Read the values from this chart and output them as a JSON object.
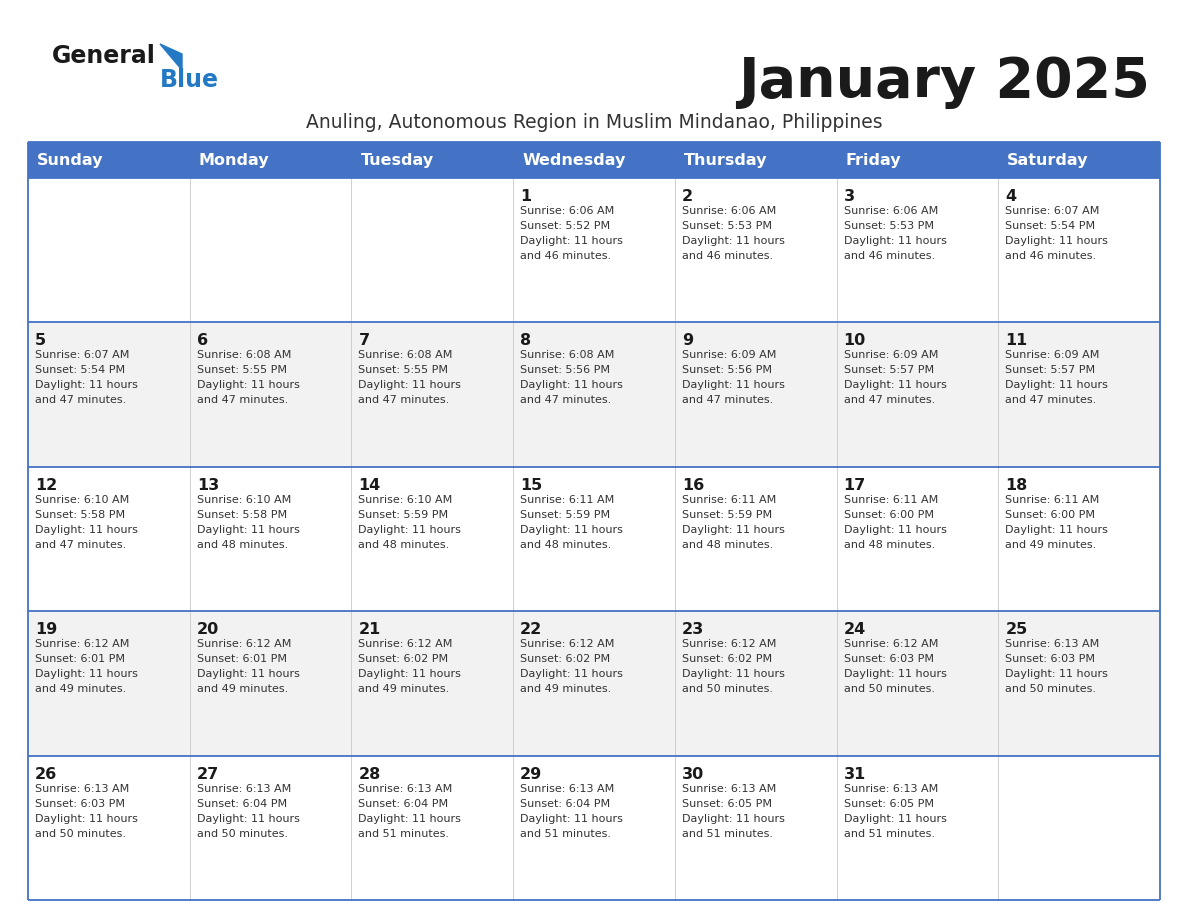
{
  "title": "January 2025",
  "subtitle": "Anuling, Autonomous Region in Muslim Mindanao, Philippines",
  "header_bg_color": "#4472C4",
  "header_text_color": "#FFFFFF",
  "row_bg_color_odd": "#FFFFFF",
  "row_bg_color_even": "#F2F2F2",
  "cell_border_color": "#4472C4",
  "day_headers": [
    "Sunday",
    "Monday",
    "Tuesday",
    "Wednesday",
    "Thursday",
    "Friday",
    "Saturday"
  ],
  "title_color": "#1a1a1a",
  "subtitle_color": "#333333",
  "day_num_color": "#1a1a1a",
  "cell_text_color": "#333333",
  "logo_general_color": "#1a1a1a",
  "logo_blue_color": "#2479C4",
  "logo_triangle_color": "#2479C4",
  "calendar_data": [
    [
      {
        "day": "",
        "sunrise": "",
        "sunset": "",
        "daylight_h": "",
        "daylight_m": ""
      },
      {
        "day": "",
        "sunrise": "",
        "sunset": "",
        "daylight_h": "",
        "daylight_m": ""
      },
      {
        "day": "",
        "sunrise": "",
        "sunset": "",
        "daylight_h": "",
        "daylight_m": ""
      },
      {
        "day": "1",
        "sunrise": "6:06 AM",
        "sunset": "5:52 PM",
        "daylight_h": "11",
        "daylight_m": "46"
      },
      {
        "day": "2",
        "sunrise": "6:06 AM",
        "sunset": "5:53 PM",
        "daylight_h": "11",
        "daylight_m": "46"
      },
      {
        "day": "3",
        "sunrise": "6:06 AM",
        "sunset": "5:53 PM",
        "daylight_h": "11",
        "daylight_m": "46"
      },
      {
        "day": "4",
        "sunrise": "6:07 AM",
        "sunset": "5:54 PM",
        "daylight_h": "11",
        "daylight_m": "46"
      }
    ],
    [
      {
        "day": "5",
        "sunrise": "6:07 AM",
        "sunset": "5:54 PM",
        "daylight_h": "11",
        "daylight_m": "47"
      },
      {
        "day": "6",
        "sunrise": "6:08 AM",
        "sunset": "5:55 PM",
        "daylight_h": "11",
        "daylight_m": "47"
      },
      {
        "day": "7",
        "sunrise": "6:08 AM",
        "sunset": "5:55 PM",
        "daylight_h": "11",
        "daylight_m": "47"
      },
      {
        "day": "8",
        "sunrise": "6:08 AM",
        "sunset": "5:56 PM",
        "daylight_h": "11",
        "daylight_m": "47"
      },
      {
        "day": "9",
        "sunrise": "6:09 AM",
        "sunset": "5:56 PM",
        "daylight_h": "11",
        "daylight_m": "47"
      },
      {
        "day": "10",
        "sunrise": "6:09 AM",
        "sunset": "5:57 PM",
        "daylight_h": "11",
        "daylight_m": "47"
      },
      {
        "day": "11",
        "sunrise": "6:09 AM",
        "sunset": "5:57 PM",
        "daylight_h": "11",
        "daylight_m": "47"
      }
    ],
    [
      {
        "day": "12",
        "sunrise": "6:10 AM",
        "sunset": "5:58 PM",
        "daylight_h": "11",
        "daylight_m": "47"
      },
      {
        "day": "13",
        "sunrise": "6:10 AM",
        "sunset": "5:58 PM",
        "daylight_h": "11",
        "daylight_m": "48"
      },
      {
        "day": "14",
        "sunrise": "6:10 AM",
        "sunset": "5:59 PM",
        "daylight_h": "11",
        "daylight_m": "48"
      },
      {
        "day": "15",
        "sunrise": "6:11 AM",
        "sunset": "5:59 PM",
        "daylight_h": "11",
        "daylight_m": "48"
      },
      {
        "day": "16",
        "sunrise": "6:11 AM",
        "sunset": "5:59 PM",
        "daylight_h": "11",
        "daylight_m": "48"
      },
      {
        "day": "17",
        "sunrise": "6:11 AM",
        "sunset": "6:00 PM",
        "daylight_h": "11",
        "daylight_m": "48"
      },
      {
        "day": "18",
        "sunrise": "6:11 AM",
        "sunset": "6:00 PM",
        "daylight_h": "11",
        "daylight_m": "49"
      }
    ],
    [
      {
        "day": "19",
        "sunrise": "6:12 AM",
        "sunset": "6:01 PM",
        "daylight_h": "11",
        "daylight_m": "49"
      },
      {
        "day": "20",
        "sunrise": "6:12 AM",
        "sunset": "6:01 PM",
        "daylight_h": "11",
        "daylight_m": "49"
      },
      {
        "day": "21",
        "sunrise": "6:12 AM",
        "sunset": "6:02 PM",
        "daylight_h": "11",
        "daylight_m": "49"
      },
      {
        "day": "22",
        "sunrise": "6:12 AM",
        "sunset": "6:02 PM",
        "daylight_h": "11",
        "daylight_m": "49"
      },
      {
        "day": "23",
        "sunrise": "6:12 AM",
        "sunset": "6:02 PM",
        "daylight_h": "11",
        "daylight_m": "50"
      },
      {
        "day": "24",
        "sunrise": "6:12 AM",
        "sunset": "6:03 PM",
        "daylight_h": "11",
        "daylight_m": "50"
      },
      {
        "day": "25",
        "sunrise": "6:13 AM",
        "sunset": "6:03 PM",
        "daylight_h": "11",
        "daylight_m": "50"
      }
    ],
    [
      {
        "day": "26",
        "sunrise": "6:13 AM",
        "sunset": "6:03 PM",
        "daylight_h": "11",
        "daylight_m": "50"
      },
      {
        "day": "27",
        "sunrise": "6:13 AM",
        "sunset": "6:04 PM",
        "daylight_h": "11",
        "daylight_m": "50"
      },
      {
        "day": "28",
        "sunrise": "6:13 AM",
        "sunset": "6:04 PM",
        "daylight_h": "11",
        "daylight_m": "51"
      },
      {
        "day": "29",
        "sunrise": "6:13 AM",
        "sunset": "6:04 PM",
        "daylight_h": "11",
        "daylight_m": "51"
      },
      {
        "day": "30",
        "sunrise": "6:13 AM",
        "sunset": "6:05 PM",
        "daylight_h": "11",
        "daylight_m": "51"
      },
      {
        "day": "31",
        "sunrise": "6:13 AM",
        "sunset": "6:05 PM",
        "daylight_h": "11",
        "daylight_m": "51"
      },
      {
        "day": "",
        "sunrise": "",
        "sunset": "",
        "daylight_h": "",
        "daylight_m": ""
      }
    ]
  ]
}
